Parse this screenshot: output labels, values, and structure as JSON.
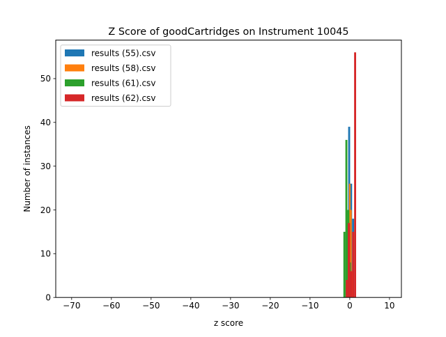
{
  "chart_data": {
    "type": "bar",
    "title": "Z Score of goodCartridges on Instrument 10045",
    "xlabel": "z score",
    "ylabel": "Number of instances",
    "xlim": [
      -74,
      13
    ],
    "ylim": [
      0,
      58.8
    ],
    "xticks": [
      -70,
      -60,
      -50,
      -40,
      -30,
      -20,
      -10,
      0,
      10
    ],
    "xtick_labels": [
      "−70",
      "−60",
      "−50",
      "−40",
      "−30",
      "−20",
      "−10",
      "0",
      "10"
    ],
    "yticks": [
      0,
      10,
      20,
      30,
      40,
      50
    ],
    "ytick_labels": [
      "0",
      "10",
      "20",
      "30",
      "40",
      "50"
    ],
    "grid": false,
    "legend_position": "upper-left",
    "series": [
      {
        "name": "results (55).csv",
        "color": "#1f77b4",
        "bars": [
          [
            -0.9,
            -0.4,
            17
          ],
          [
            -0.4,
            0.1,
            39
          ],
          [
            0.1,
            0.6,
            26
          ],
          [
            0.6,
            1.1,
            18
          ]
        ]
      },
      {
        "name": "results (58).csv",
        "color": "#ff7f0e",
        "bars": [
          [
            -0.7,
            -0.2,
            9
          ],
          [
            -0.2,
            0.2,
            26
          ],
          [
            0.2,
            0.5,
            20
          ],
          [
            0.5,
            0.8,
            6
          ]
        ]
      },
      {
        "name": "results (61).csv",
        "color": "#2ca02c",
        "bars": [
          [
            -1.6,
            -1.1,
            15
          ],
          [
            -1.1,
            -0.6,
            36
          ],
          [
            -0.6,
            -0.1,
            20
          ],
          [
            -0.1,
            0.3,
            8
          ]
        ]
      },
      {
        "name": "results (62).csv",
        "color": "#d62728",
        "bars": [
          [
            -1.0,
            -0.5,
            4
          ],
          [
            -0.5,
            0.1,
            17
          ],
          [
            0.1,
            0.6,
            6
          ],
          [
            0.6,
            1.1,
            15
          ],
          [
            1.1,
            1.6,
            56
          ]
        ]
      }
    ]
  }
}
